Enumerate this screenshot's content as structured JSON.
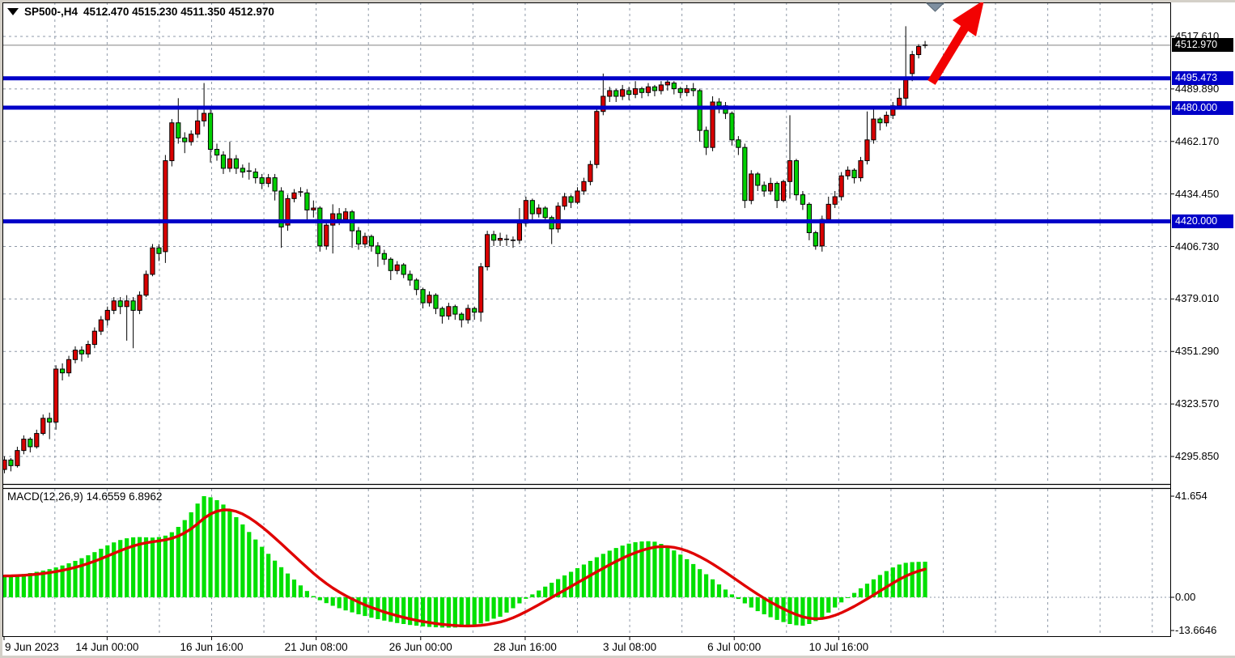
{
  "ui": {
    "title": {
      "symbol": "SP500-,H4",
      "open": "4512.470",
      "high": "4515.230",
      "low": "4511.350",
      "close": "4512.970"
    },
    "macd_label": {
      "name": "MACD(12,26,9)",
      "macd_value": "14.6559",
      "signal_value": "6.8962"
    },
    "icons": {
      "symbol_marker": "down-triangle",
      "chart_shift_marker": "down-triangle",
      "trend_arrow": "up-right-red-arrow"
    }
  },
  "colors": {
    "bull_candle": "#d90000",
    "bear_candle": "#00d000",
    "candle_border": "#000000",
    "wick": "#000000",
    "doji": "#000000",
    "histogram": "#00e000",
    "signal_line": "#e00000",
    "level_line": "#0000c8",
    "level_badge_bg": "#0000c8",
    "bid_badge_bg": "#000000",
    "badge_text": "#ffffff",
    "grid": "#8f99a8",
    "bid_line": "#808080",
    "axis_text": "#000000",
    "frame": "#000000",
    "arrow": "#f20202",
    "shift_marker": "#7e8fa0",
    "chrome": "#d4d0c8"
  },
  "chart_data": [
    {
      "type": "candlestick",
      "title": "SP500-,H4",
      "timeframe": "H4",
      "current_bar": {
        "open": 4512.47,
        "high": 4515.23,
        "low": 4511.35,
        "close": 4512.97
      },
      "y_axis": {
        "tick_labels": [
          "4517.610",
          "4489.890",
          "4462.170",
          "4434.450",
          "4406.730",
          "4379.010",
          "4351.290",
          "4323.570",
          "4295.850"
        ],
        "tick_values": [
          4517.61,
          4489.89,
          4462.17,
          4434.45,
          4406.73,
          4379.01,
          4351.29,
          4323.57,
          4295.85
        ]
      },
      "x_axis": {
        "labels": [
          "9 Jun 2023",
          "14 Jun 00:00",
          "16 Jun 16:00",
          "21 Jun 08:00",
          "26 Jun 00:00",
          "28 Jun 16:00",
          "3 Jul 08:00",
          "6 Jul 00:00",
          "10 Jul 16:00"
        ]
      },
      "levels": [
        {
          "value": 4495.473,
          "label": "4495.473"
        },
        {
          "value": 4480.0,
          "label": "4480.000"
        },
        {
          "value": 4420.0,
          "label": "4420.000"
        }
      ],
      "bid": {
        "value": 4512.97,
        "label": "4512.970"
      },
      "candles": [
        [
          4289,
          4296,
          4287,
          4294
        ],
        [
          4294,
          4295,
          4288,
          4291
        ],
        [
          4291,
          4301,
          4290,
          4299
        ],
        [
          4299,
          4307,
          4297,
          4305
        ],
        [
          4305,
          4306,
          4298,
          4301
        ],
        [
          4301,
          4310,
          4300,
          4308
        ],
        [
          4308,
          4318,
          4307,
          4316
        ],
        [
          4316,
          4319,
          4305,
          4314
        ],
        [
          4314,
          4344,
          4310,
          4342
        ],
        [
          4342,
          4345,
          4336,
          4340
        ],
        [
          4340,
          4349,
          4338,
          4347
        ],
        [
          4347,
          4354,
          4345,
          4352
        ],
        [
          4352,
          4354,
          4346,
          4350
        ],
        [
          4350,
          4357,
          4348,
          4355
        ],
        [
          4355,
          4364,
          4353,
          4362
        ],
        [
          4362,
          4370,
          4360,
          4368
        ],
        [
          4368,
          4375,
          4365,
          4373
        ],
        [
          4373,
          4380,
          4371,
          4378
        ],
        [
          4378,
          4380,
          4371,
          4375
        ],
        [
          4375,
          4381,
          4357,
          4378
        ],
        [
          4378,
          4380,
          4353,
          4373
        ],
        [
          4373,
          4383,
          4371,
          4381
        ],
        [
          4381,
          4394,
          4380,
          4392
        ],
        [
          4392,
          4408,
          4391,
          4406
        ],
        [
          4406,
          4408,
          4399,
          4403
        ],
        [
          4404,
          4455,
          4398,
          4452
        ],
        [
          4452,
          4474,
          4449,
          4472
        ],
        [
          4472,
          4485,
          4461,
          4464
        ],
        [
          4464,
          4467,
          4456,
          4462
        ],
        [
          4462,
          4468,
          4460,
          4466
        ],
        [
          4466,
          4481,
          4464,
          4473
        ],
        [
          4473,
          4493,
          4470,
          4477
        ],
        [
          4477,
          4479,
          4451,
          4458
        ],
        [
          4458,
          4461,
          4452,
          4455
        ],
        [
          4455,
          4457,
          4445,
          4448
        ],
        [
          4448,
          4462,
          4446,
          4453
        ],
        [
          4453,
          4455,
          4445,
          4448
        ],
        [
          4448,
          4450,
          4443,
          4446
        ],
        [
          4446,
          4451,
          4442,
          4446.5
        ],
        [
          4446,
          4448,
          4440,
          4443
        ],
        [
          4443,
          4445,
          4437,
          4440
        ],
        [
          4440,
          4445,
          4438,
          4443
        ],
        [
          4443,
          4445,
          4431,
          4436
        ],
        [
          4436,
          4438,
          4406,
          4417
        ],
        [
          4418,
          4434,
          4415,
          4432
        ],
        [
          4432,
          4437,
          4430,
          4435
        ],
        [
          4435,
          4438,
          4433,
          4435.5
        ],
        [
          4435,
          4437,
          4419,
          4426
        ],
        [
          4426,
          4431,
          4422,
          4427
        ],
        [
          4427,
          4428,
          4404,
          4407
        ],
        [
          4407,
          4420,
          4405,
          4418
        ],
        [
          4418,
          4429,
          4403,
          4424
        ],
        [
          4424,
          4427,
          4418,
          4421
        ],
        [
          4421,
          4427,
          4419,
          4425
        ],
        [
          4425,
          4426,
          4406,
          4415
        ],
        [
          4415,
          4417,
          4405,
          4408
        ],
        [
          4408,
          4414,
          4406,
          4412
        ],
        [
          4412,
          4413,
          4404,
          4407
        ],
        [
          4407,
          4409,
          4396,
          4403
        ],
        [
          4403,
          4405,
          4397,
          4400
        ],
        [
          4400,
          4401,
          4389,
          4394
        ],
        [
          4394,
          4399,
          4392,
          4397
        ],
        [
          4397,
          4398,
          4390,
          4392
        ],
        [
          4392,
          4394,
          4386,
          4389
        ],
        [
          4389,
          4390,
          4381,
          4384
        ],
        [
          4384,
          4385,
          4374,
          4377
        ],
        [
          4377,
          4383,
          4375,
          4381
        ],
        [
          4381,
          4382,
          4371,
          4374
        ],
        [
          4374,
          4375,
          4366,
          4370
        ],
        [
          4370,
          4377,
          4368,
          4375
        ],
        [
          4375,
          4376,
          4368,
          4371
        ],
        [
          4371,
          4372,
          4364,
          4368
        ],
        [
          4368,
          4376,
          4366,
          4374
        ],
        [
          4374,
          4375,
          4368,
          4372
        ],
        [
          4372,
          4398,
          4367,
          4396
        ],
        [
          4396,
          4415,
          4394,
          4413
        ],
        [
          4413,
          4415,
          4407,
          4410
        ],
        [
          4410,
          4414,
          4407,
          4411
        ],
        [
          4411,
          4413,
          4407,
          4410.5
        ],
        [
          4410,
          4412,
          4406,
          4410
        ],
        [
          4410,
          4427,
          4408,
          4419
        ],
        [
          4419,
          4433,
          4417,
          4431
        ],
        [
          4431,
          4432,
          4421,
          4424
        ],
        [
          4424,
          4429,
          4422,
          4427
        ],
        [
          4427,
          4428,
          4419,
          4422
        ],
        [
          4422,
          4423,
          4408,
          4416
        ],
        [
          4416,
          4430,
          4414,
          4428
        ],
        [
          4428,
          4435,
          4426,
          4433
        ],
        [
          4433,
          4434,
          4427,
          4430
        ],
        [
          4430,
          4438,
          4429,
          4436
        ],
        [
          4436,
          4443,
          4434,
          4441
        ],
        [
          4441,
          4452,
          4439,
          4450
        ],
        [
          4450,
          4481,
          4448,
          4478
        ],
        [
          4478,
          4498,
          4476,
          4486
        ],
        [
          4486,
          4491,
          4483,
          4489
        ],
        [
          4489,
          4490,
          4483,
          4486
        ],
        [
          4486,
          4492,
          4484,
          4489.5
        ],
        [
          4489,
          4491,
          4484,
          4487
        ],
        [
          4487,
          4494,
          4485,
          4490
        ],
        [
          4490,
          4491,
          4485,
          4488
        ],
        [
          4488,
          4493,
          4486,
          4491
        ],
        [
          4491,
          4492,
          4486,
          4489
        ],
        [
          4489,
          4494,
          4487,
          4492
        ],
        [
          4492,
          4496,
          4489,
          4493.5
        ],
        [
          4493,
          4494,
          4487,
          4490
        ],
        [
          4490,
          4491,
          4485,
          4488
        ],
        [
          4488,
          4492,
          4486,
          4490
        ],
        [
          4490,
          4493,
          4486,
          4489
        ],
        [
          4489,
          4490,
          4462,
          4468
        ],
        [
          4468,
          4470,
          4455,
          4459
        ],
        [
          4459,
          4486,
          4457,
          4483
        ],
        [
          4483,
          4485,
          4477,
          4481
        ],
        [
          4481,
          4483,
          4474,
          4477
        ],
        [
          4477,
          4478,
          4460,
          4463
        ],
        [
          4463,
          4465,
          4455,
          4459
        ],
        [
          4459,
          4461,
          4427,
          4431
        ],
        [
          4431,
          4447,
          4429,
          4445
        ],
        [
          4445,
          4446,
          4436,
          4439
        ],
        [
          4439,
          4441,
          4433,
          4436
        ],
        [
          4436,
          4443,
          4434,
          4440
        ],
        [
          4440,
          4441,
          4427,
          4431
        ],
        [
          4431,
          4442,
          4430,
          4441
        ],
        [
          4441,
          4476,
          4432,
          4452
        ],
        [
          4452,
          4453,
          4431,
          4434
        ],
        [
          4434,
          4436,
          4426,
          4429
        ],
        [
          4429,
          4430,
          4410,
          4414
        ],
        [
          4414,
          4415,
          4405,
          4407
        ],
        [
          4407,
          4423,
          4404,
          4421
        ],
        [
          4421,
          4433,
          4419,
          4429
        ],
        [
          4429,
          4436,
          4427,
          4433
        ],
        [
          4433,
          4446,
          4431,
          4444
        ],
        [
          4444,
          4449,
          4442,
          4447
        ],
        [
          4447,
          4448,
          4440,
          4443
        ],
        [
          4443,
          4454,
          4441,
          4452
        ],
        [
          4452,
          4478,
          4450,
          4463
        ],
        [
          4463,
          4480,
          4461,
          4474
        ],
        [
          4474,
          4475,
          4468,
          4472
        ],
        [
          4472,
          4478,
          4470,
          4476
        ],
        [
          4476,
          4483,
          4474,
          4481
        ],
        [
          4481,
          4490,
          4479,
          4485
        ],
        [
          4485,
          4523,
          4481,
          4496
        ],
        [
          4498,
          4510,
          4494,
          4508
        ],
        [
          4508,
          4513.5,
          4506,
          4512.3
        ],
        [
          4512.47,
          4515.23,
          4511.35,
          4512.97
        ]
      ]
    },
    {
      "type": "bar",
      "title": "MACD(12,26,9)",
      "current": {
        "macd": 14.6559,
        "signal": 6.8962
      },
      "y_ticks": [
        {
          "value": 41.654,
          "label": "41.654"
        },
        {
          "value": 0,
          "label": "0.00"
        },
        {
          "value": -13.6646,
          "label": "-13.6646"
        }
      ],
      "signal_ema_period": 9,
      "values": [
        8.8,
        9.0,
        9.3,
        9.6,
        10.0,
        10.5,
        11.0,
        11.6,
        12.3,
        13.1,
        14.0,
        15.0,
        16.1,
        17.3,
        18.6,
        20.0,
        21.4,
        22.6,
        23.6,
        24.3,
        24.7,
        24.8,
        24.7,
        24.6,
        24.8,
        25.4,
        26.8,
        29.0,
        31.8,
        35.0,
        38.6,
        41.654,
        41.2,
        40.0,
        38.2,
        35.8,
        33.0,
        30.0,
        26.9,
        23.8,
        20.8,
        17.9,
        15.1,
        12.4,
        9.8,
        7.3,
        4.9,
        2.6,
        0.5,
        -1.2,
        -2.4,
        -3.5,
        -4.5,
        -5.4,
        -6.2,
        -7.0,
        -7.7,
        -8.4,
        -9.0,
        -9.6,
        -10.1,
        -10.6,
        -11.0,
        -11.4,
        -11.7,
        -12.0,
        -12.2,
        -12.35,
        -12.45,
        -12.5,
        -12.45,
        -12.3,
        -12.0,
        -11.5,
        -10.8,
        -9.9,
        -8.8,
        -8.0,
        -6.3,
        -4.5,
        -2.5,
        -0.6,
        1.2,
        2.8,
        4.4,
        6.0,
        7.5,
        9.0,
        10.5,
        12.0,
        13.5,
        15.0,
        16.5,
        17.9,
        19.2,
        20.3,
        21.3,
        22.1,
        22.7,
        23.0,
        23.1,
        22.9,
        22.0,
        20.8,
        19.3,
        17.6,
        15.7,
        13.7,
        11.6,
        9.5,
        7.4,
        5.3,
        3.2,
        1.2,
        -0.7,
        -2.5,
        -4.2,
        -5.7,
        -7.0,
        -8.2,
        -9.3,
        -10.2,
        -11.0,
        -11.5,
        -11.7,
        -11.0,
        -9.8,
        -8.2,
        -6.3,
        -4.2,
        -2.1,
        -0.1,
        1.8,
        3.7,
        5.6,
        7.4,
        9.2,
        10.8,
        12.3,
        13.5,
        14.2,
        14.5,
        14.6,
        14.6559
      ]
    }
  ]
}
